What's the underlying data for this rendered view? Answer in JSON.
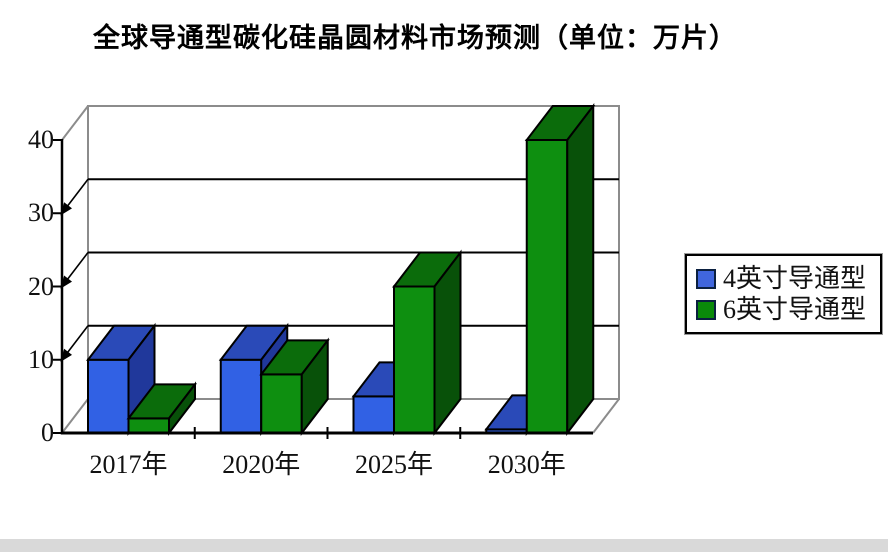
{
  "title": "全球导通型碳化硅晶圆材料市场预测（单位：万片）",
  "chart_data": {
    "type": "bar",
    "projection": "3d",
    "title": "全球导通型碳化硅晶圆材料市场预测（单位：万片）",
    "unit": "万片",
    "categories": [
      "2017年",
      "2020年",
      "2025年",
      "2030年"
    ],
    "series": [
      {
        "name": "4英寸导通型",
        "values": [
          10,
          10,
          5,
          0.5
        ],
        "color_front": "#3161e4",
        "color_top": "#2a4ab8",
        "color_side": "#20389b",
        "legend_color": "#4066dd"
      },
      {
        "name": "6英寸导通型",
        "values": [
          2,
          8,
          20,
          40
        ],
        "color_front": "#0e8f10",
        "color_top": "#0b6c0b",
        "color_side": "#085109",
        "legend_color": "#0a8a0a"
      }
    ],
    "ylim": [
      0,
      40
    ],
    "yticks": [
      0,
      10,
      20,
      30,
      40
    ],
    "grid": true,
    "legend_position": "right",
    "axis_color": "#000000",
    "wall_color": "#8c8c8c"
  }
}
